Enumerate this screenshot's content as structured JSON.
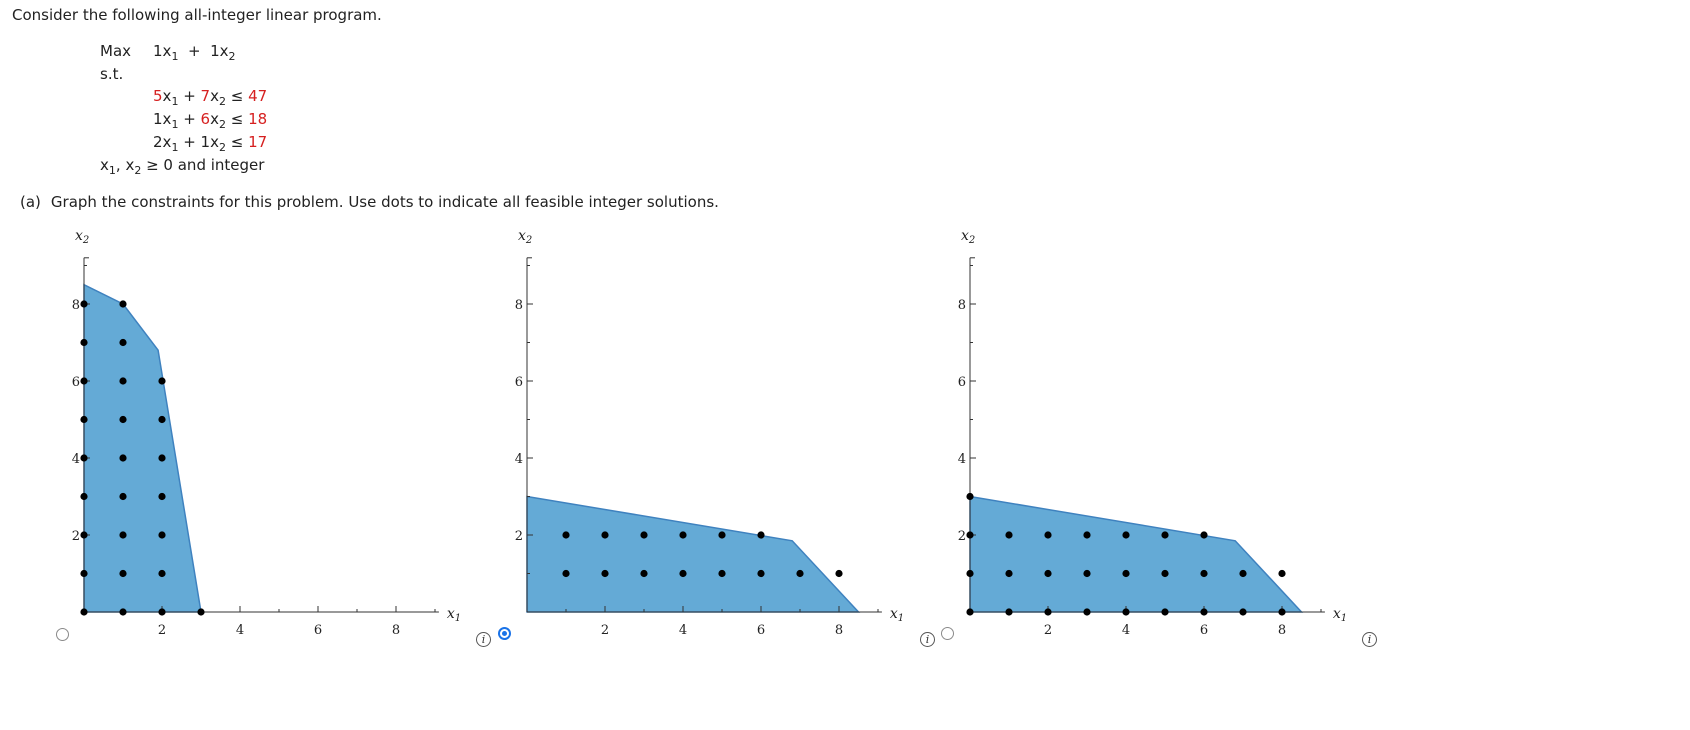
{
  "intro": "Consider the following all-integer linear program.",
  "program": {
    "max_label": "Max",
    "st_label": "s.t.",
    "objective": [
      {
        "coef": "1",
        "var": "x",
        "sub": "1",
        "op": "+"
      },
      {
        "coef": "1",
        "var": "x",
        "sub": "2",
        "op": ""
      }
    ],
    "constraints": [
      {
        "c1": "5",
        "c1_red": true,
        "c2": "7",
        "c2_red": true,
        "rel": "≤",
        "rhs": "47"
      },
      {
        "c1": "1",
        "c1_red": false,
        "c2": "6",
        "c2_red": true,
        "rel": "≤",
        "rhs": "18"
      },
      {
        "c1": "2",
        "c1_red": false,
        "c2": "1",
        "c2_red": false,
        "rel": "≤",
        "rhs": "17"
      }
    ],
    "nonneg": {
      "v1": "x",
      "s1": "1",
      "sep": ", ",
      "v2": "x",
      "s2": "2",
      "text": " ≥ 0 and integer"
    }
  },
  "part_a": {
    "tag": "(a)",
    "text": "Graph the constraints for this problem. Use dots to indicate all feasible integer solutions."
  },
  "colors": {
    "fill": "#64aad6",
    "edge": "#3f82bf",
    "dot": "#000000",
    "axis": "#333333",
    "selected": "#1a73e8"
  },
  "chart_data": [
    {
      "type": "scatter",
      "option": 1,
      "selected": false,
      "xlabel": "x1",
      "ylabel": "x2",
      "xlim": [
        0,
        9.1
      ],
      "ylim": [
        0,
        9.2
      ],
      "xticks": [
        2,
        4,
        6,
        8
      ],
      "yticks": [
        2,
        4,
        6,
        8
      ],
      "region": [
        [
          0,
          0
        ],
        [
          3,
          0
        ],
        [
          1.9,
          6.8
        ],
        [
          1,
          8
        ],
        [
          0,
          8.5
        ]
      ],
      "points": [
        [
          0,
          0
        ],
        [
          1,
          0
        ],
        [
          2,
          0
        ],
        [
          3,
          0
        ],
        [
          0,
          1
        ],
        [
          1,
          1
        ],
        [
          2,
          1
        ],
        [
          0,
          2
        ],
        [
          1,
          2
        ],
        [
          2,
          2
        ],
        [
          0,
          3
        ],
        [
          1,
          3
        ],
        [
          2,
          3
        ],
        [
          0,
          4
        ],
        [
          1,
          4
        ],
        [
          2,
          4
        ],
        [
          0,
          5
        ],
        [
          1,
          5
        ],
        [
          2,
          5
        ],
        [
          0,
          6
        ],
        [
          1,
          6
        ],
        [
          2,
          6
        ],
        [
          0,
          7
        ],
        [
          1,
          7
        ],
        [
          0,
          8
        ],
        [
          1,
          8
        ]
      ]
    },
    {
      "type": "scatter",
      "option": 2,
      "selected": true,
      "xlabel": "x1",
      "ylabel": "x2",
      "xlim": [
        0,
        9.1
      ],
      "ylim": [
        0,
        9.2
      ],
      "xticks": [
        2,
        4,
        6,
        8
      ],
      "yticks": [
        2,
        4,
        6,
        8
      ],
      "region": [
        [
          0,
          0
        ],
        [
          8.5,
          0
        ],
        [
          6.8,
          1.85
        ],
        [
          0,
          3
        ]
      ],
      "points": [
        [
          1,
          1
        ],
        [
          2,
          1
        ],
        [
          3,
          1
        ],
        [
          4,
          1
        ],
        [
          5,
          1
        ],
        [
          6,
          1
        ],
        [
          7,
          1
        ],
        [
          8,
          1
        ],
        [
          1,
          2
        ],
        [
          2,
          2
        ],
        [
          3,
          2
        ],
        [
          4,
          2
        ],
        [
          5,
          2
        ],
        [
          6,
          2
        ]
      ]
    },
    {
      "type": "scatter",
      "option": 3,
      "selected": false,
      "xlabel": "x1",
      "ylabel": "x2",
      "xlim": [
        0,
        9.1
      ],
      "ylim": [
        0,
        9.2
      ],
      "xticks": [
        2,
        4,
        6,
        8
      ],
      "yticks": [
        2,
        4,
        6,
        8
      ],
      "region": [
        [
          0,
          0
        ],
        [
          8.5,
          0
        ],
        [
          6.8,
          1.85
        ],
        [
          0,
          3
        ]
      ],
      "points": [
        [
          0,
          0
        ],
        [
          1,
          0
        ],
        [
          2,
          0
        ],
        [
          3,
          0
        ],
        [
          4,
          0
        ],
        [
          5,
          0
        ],
        [
          6,
          0
        ],
        [
          7,
          0
        ],
        [
          8,
          0
        ],
        [
          0,
          1
        ],
        [
          1,
          1
        ],
        [
          2,
          1
        ],
        [
          3,
          1
        ],
        [
          4,
          1
        ],
        [
          5,
          1
        ],
        [
          6,
          1
        ],
        [
          7,
          1
        ],
        [
          8,
          1
        ],
        [
          0,
          2
        ],
        [
          1,
          2
        ],
        [
          2,
          2
        ],
        [
          3,
          2
        ],
        [
          4,
          2
        ],
        [
          5,
          2
        ],
        [
          6,
          2
        ],
        [
          0,
          3
        ]
      ]
    }
  ]
}
